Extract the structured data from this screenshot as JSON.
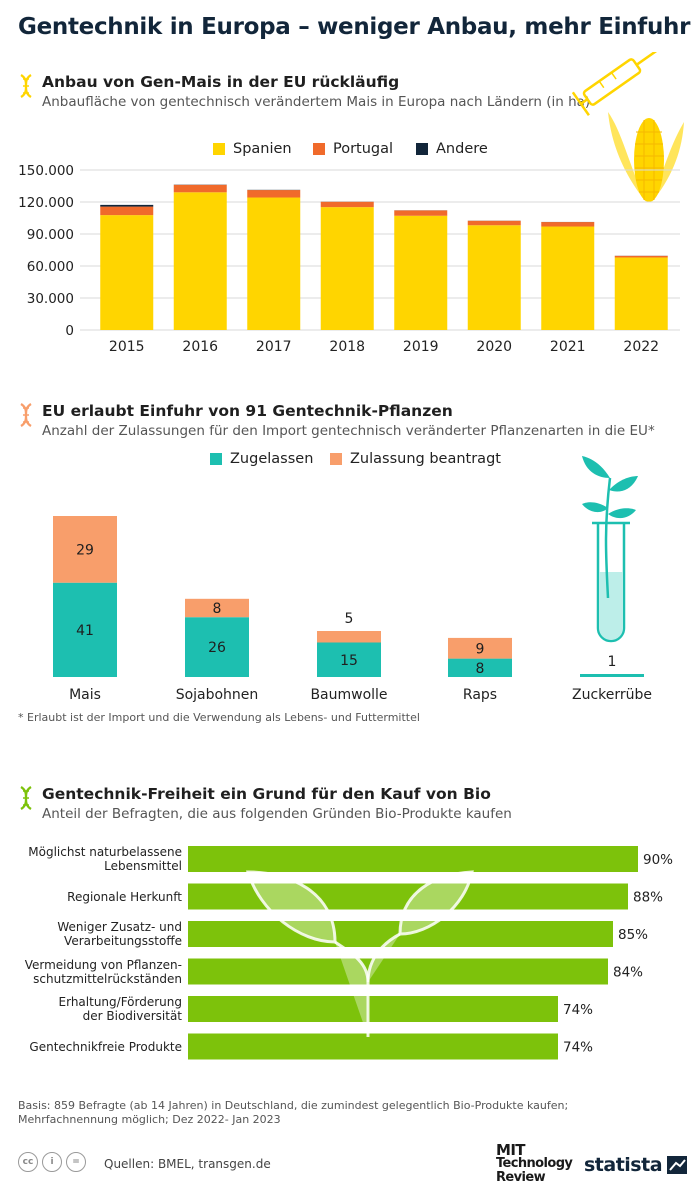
{
  "title": "Gentechnik in Europa – weniger Anbau, mehr Einfuhr",
  "colors": {
    "spanien": "#ffd500",
    "portugal": "#f06a2b",
    "andere": "#12263a",
    "zugelassen": "#1dbfb0",
    "beantragt": "#f89e6b",
    "bio": "#7dc20b",
    "text_dark": "#12263a"
  },
  "section1": {
    "title": "Anbau von Gen-Mais in der EU rückläufig",
    "subtitle": "Anbaufläche von gentechnisch verändertem Mais in Europa nach Ländern (in ha)"
  },
  "section2": {
    "title": "EU erlaubt Einfuhr von 91 Gentechnik-Pflanzen",
    "subtitle": "Anzahl der Zulassungen für den Import gentechnisch veränderter Pflanzenarten in die EU*",
    "footnote": "* Erlaubt ist der Import und die Verwendung als Lebens- und Futtermittel"
  },
  "section3": {
    "title": "Gentechnik-Freiheit ein Grund für den Kauf von Bio",
    "subtitle": "Anteil der Befragten, die aus folgenden Gründen Bio-Produkte kaufen"
  },
  "chart_data": [
    {
      "type": "bar",
      "stacked": true,
      "categories": [
        "2015",
        "2016",
        "2017",
        "2018",
        "2019",
        "2020",
        "2021",
        "2022"
      ],
      "series": [
        {
          "name": "Spanien",
          "values": [
            107700,
            129100,
            124200,
            115200,
            107100,
            98200,
            97000,
            68000
          ]
        },
        {
          "name": "Portugal",
          "values": [
            8000,
            7000,
            7000,
            5000,
            5000,
            4200,
            4200,
            1500
          ]
        },
        {
          "name": "Andere",
          "values": [
            1600,
            200,
            200,
            100,
            100,
            100,
            100,
            100
          ]
        }
      ],
      "yticks": [
        "0",
        "30.000",
        "60.000",
        "90.000",
        "120.000",
        "150.000"
      ],
      "ylim": [
        0,
        150000
      ],
      "grid": true,
      "legend": "top"
    },
    {
      "type": "bar",
      "stacked": true,
      "categories": [
        "Mais",
        "Sojabohnen",
        "Baumwolle",
        "Raps",
        "Zuckerrübe"
      ],
      "series": [
        {
          "name": "Zugelassen",
          "values": [
            41,
            26,
            15,
            8,
            1
          ]
        },
        {
          "name": "Zulassung beantragt",
          "values": [
            29,
            8,
            5,
            9,
            0
          ]
        }
      ],
      "legend": "top"
    },
    {
      "type": "bar",
      "orientation": "horizontal",
      "categories": [
        [
          "Möglichst naturbelassene",
          "Lebensmittel"
        ],
        [
          "Regionale Herkunft"
        ],
        [
          "Weniger Zusatz- und",
          "Verarbeitungsstoffe"
        ],
        [
          "Vermeidung von Pflanzen-",
          "schutzmittelrückständen"
        ],
        [
          "Erhaltung/Förderung",
          "der Biodiversität"
        ],
        [
          "Gentechnikfreie Produkte"
        ]
      ],
      "values": [
        90,
        88,
        85,
        84,
        74,
        74
      ],
      "value_labels": [
        "90%",
        "88%",
        "85%",
        "84%",
        "74%",
        "74%"
      ]
    }
  ],
  "basis": "Basis: 859 Befragte (ab 14 Jahren) in Deutschland, die zumindest gelegentlich Bio-Produkte kaufen; Mehrfachnennung möglich; Dez 2022- Jan 2023",
  "sources": "Quellen: BMEL, transgen.de",
  "logos": {
    "mit": [
      "MIT",
      "Technology",
      "Review"
    ],
    "statista": "statista"
  },
  "icons": [
    "dna-icon",
    "corn-syringe-icon",
    "sprout-test-tube-icon",
    "leaves-sprout-icon",
    "cc-icon",
    "by-icon",
    "nd-icon"
  ]
}
